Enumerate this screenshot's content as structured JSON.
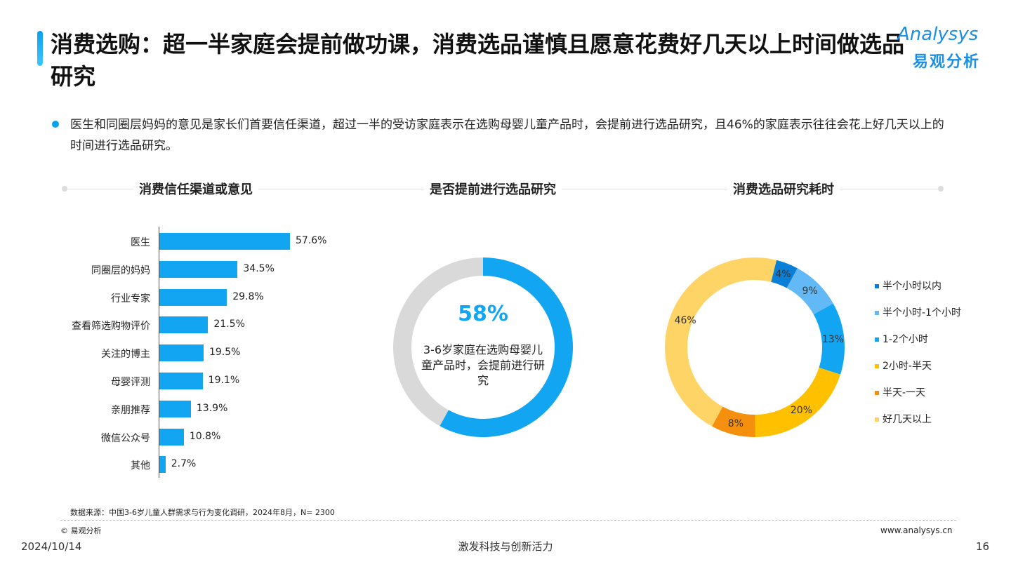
{
  "header": {
    "title": "消费选购：超一半家庭会提前做功课，消费选品谨慎且愿意花费好几天以上时间做选品研究",
    "logo_en": "Analysys",
    "logo_cn": "易观分析"
  },
  "description": "医生和同圈层妈妈的意见是家长们首要信任渠道，超过一半的受访家庭表示在选购母婴儿童产品时，会提前进行选品研究，且46%的家庭表示往往会花上好几天以上的时间进行选品研究。",
  "colors": {
    "accent": "#12a5f2",
    "grey": "#d9d9d9",
    "dark_blue": "#0a7fd8",
    "light_blue": "#63b9f6",
    "blue": "#12a5f2",
    "gold": "#ffc000",
    "orange": "#f5900e",
    "yellow": "#ffd466"
  },
  "chart_data": [
    {
      "type": "bar",
      "title": "消费信任渠道或意见",
      "categories": [
        "医生",
        "同圈层的妈妈",
        "行业专家",
        "查看筛选购物评价",
        "关注的博主",
        "母婴评测",
        "亲朋推荐",
        "微信公众号",
        "其他"
      ],
      "values": [
        57.6,
        34.5,
        29.8,
        21.5,
        19.5,
        19.1,
        13.9,
        10.8,
        2.7
      ],
      "value_labels": [
        "57.6%",
        "34.5%",
        "29.8%",
        "21.5%",
        "19.5%",
        "19.1%",
        "13.9%",
        "10.8%",
        "2.7%"
      ],
      "orientation": "horizontal"
    },
    {
      "type": "pie",
      "title": "是否提前进行选品研究",
      "values": [
        58,
        42
      ],
      "center_value": "58%",
      "center_text": "3-6岁家庭在选购母婴儿童产品时，会提前进行研究"
    },
    {
      "type": "pie",
      "title": "消费选品研究耗时",
      "categories": [
        "半个小时以内",
        "半个小时-1个小时",
        "1-2个小时",
        "2小时-半天",
        "半天-一天",
        "好几天以上"
      ],
      "values": [
        4,
        9,
        13,
        20,
        8,
        46
      ],
      "value_labels": [
        "4%",
        "9%",
        "13%",
        "20%",
        "8%",
        "46%"
      ],
      "legend_position": "right"
    }
  ],
  "footer": {
    "source": "数据来源：中国3-6岁儿童人群需求与行为变化调研，2024年8月，N= 2300",
    "copyright": "© 易观分析",
    "website": "www.analysys.cn",
    "date": "2024/10/14",
    "slogan": "激发科技与创新活力",
    "page": "16"
  }
}
